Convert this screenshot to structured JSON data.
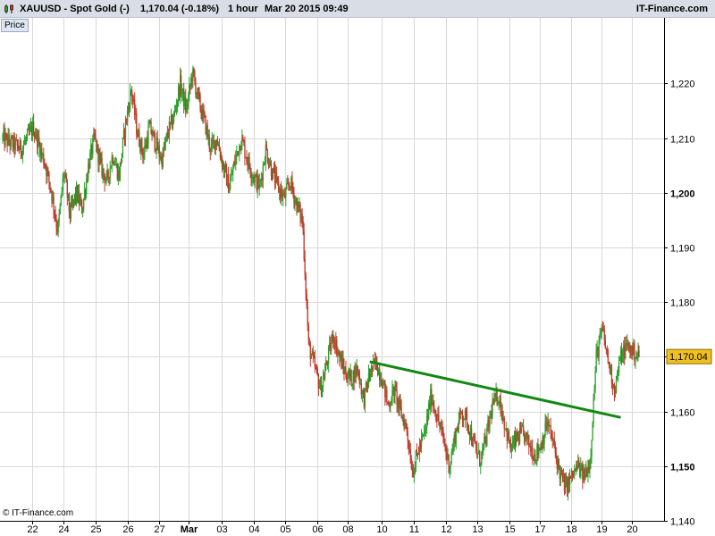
{
  "header": {
    "instrument": "XAUUSD - Spot Gold (-)",
    "price_change": "1,170.04 (-0.18%)",
    "interval": "1 hour",
    "datetime": "Mar 20 2015 09:49",
    "brand": "IT-Finance.com",
    "price_tab": "Price"
  },
  "footer": {
    "copyright": "© IT-Finance.com"
  },
  "colors": {
    "up": "#2ca02c",
    "down": "#c0392b",
    "trendline": "#118811",
    "price_label_bg": "#f0c020",
    "grid": "#d8d8d8"
  },
  "chart_data": {
    "type": "candlestick",
    "title": "XAUUSD - Spot Gold (-)",
    "ylim": [
      1140,
      1232
    ],
    "y_ticks": [
      {
        "value": 1140,
        "label": "1,140",
        "bold": false
      },
      {
        "value": 1150,
        "label": "1,150",
        "bold": true
      },
      {
        "value": 1160,
        "label": "1,160",
        "bold": false
      },
      {
        "value": 1170,
        "label": "1,170",
        "bold": false
      },
      {
        "value": 1180,
        "label": "1,180",
        "bold": false
      },
      {
        "value": 1190,
        "label": "1,190",
        "bold": false
      },
      {
        "value": 1200,
        "label": "1,200",
        "bold": true
      },
      {
        "value": 1210,
        "label": "1,210",
        "bold": false
      },
      {
        "value": 1220,
        "label": "1,220",
        "bold": false
      }
    ],
    "x_ticks": [
      "22",
      "24",
      "25",
      "26",
      "27",
      "Mar",
      "03",
      "04",
      "05",
      "06",
      "08",
      "10",
      "11",
      "12",
      "13",
      "15",
      "17",
      "18",
      "19",
      "20"
    ],
    "x_bold": [
      "Mar"
    ],
    "last_price": 1170.04,
    "last_price_label": "1,170.04",
    "price_path": [
      [
        0,
        1210
      ],
      [
        3,
        1208
      ],
      [
        5,
        1212
      ],
      [
        7,
        1205
      ],
      [
        8,
        1200
      ],
      [
        9,
        1193
      ],
      [
        10,
        1204
      ],
      [
        11,
        1196
      ],
      [
        12,
        1200
      ],
      [
        13,
        1197
      ],
      [
        14,
        1205
      ],
      [
        15,
        1210
      ],
      [
        16,
        1205
      ],
      [
        17,
        1202
      ],
      [
        18,
        1207
      ],
      [
        19,
        1203
      ],
      [
        20,
        1212
      ],
      [
        21,
        1219
      ],
      [
        22,
        1211
      ],
      [
        23,
        1207
      ],
      [
        24,
        1212
      ],
      [
        25,
        1209
      ],
      [
        26,
        1206
      ],
      [
        27,
        1211
      ],
      [
        28,
        1214
      ],
      [
        29,
        1220
      ],
      [
        30,
        1215
      ],
      [
        31,
        1222
      ],
      [
        32,
        1217
      ],
      [
        33,
        1213
      ],
      [
        34,
        1208
      ],
      [
        35,
        1210
      ],
      [
        36,
        1205
      ],
      [
        37,
        1201
      ],
      [
        38,
        1206
      ],
      [
        39,
        1210
      ],
      [
        40,
        1206
      ],
      [
        41,
        1203
      ],
      [
        42,
        1201
      ],
      [
        43,
        1208
      ],
      [
        44,
        1204
      ],
      [
        45,
        1201
      ],
      [
        46,
        1199
      ],
      [
        47,
        1202
      ],
      [
        48,
        1198
      ],
      [
        49,
        1195
      ],
      [
        50,
        1172
      ],
      [
        51,
        1168
      ],
      [
        52,
        1164
      ],
      [
        53,
        1169
      ],
      [
        54,
        1174
      ],
      [
        55,
        1170
      ],
      [
        56,
        1167
      ],
      [
        57,
        1166
      ],
      [
        58,
        1168
      ],
      [
        59,
        1162
      ],
      [
        60,
        1167
      ],
      [
        61,
        1169
      ],
      [
        62,
        1166
      ],
      [
        63,
        1161
      ],
      [
        64,
        1164
      ],
      [
        65,
        1160
      ],
      [
        66,
        1157
      ],
      [
        67,
        1149
      ],
      [
        68,
        1153
      ],
      [
        69,
        1156
      ],
      [
        70,
        1163
      ],
      [
        71,
        1159
      ],
      [
        72,
        1155
      ],
      [
        73,
        1150
      ],
      [
        74,
        1156
      ],
      [
        75,
        1160
      ],
      [
        76,
        1158
      ],
      [
        77,
        1154
      ],
      [
        78,
        1151
      ],
      [
        79,
        1155
      ],
      [
        80,
        1161
      ],
      [
        81,
        1163
      ],
      [
        82,
        1158
      ],
      [
        83,
        1153
      ],
      [
        84,
        1155
      ],
      [
        85,
        1156
      ],
      [
        86,
        1154
      ],
      [
        87,
        1152
      ],
      [
        88,
        1154
      ],
      [
        89,
        1158
      ],
      [
        90,
        1154
      ],
      [
        91,
        1149
      ],
      [
        92,
        1146
      ],
      [
        93,
        1148
      ],
      [
        94,
        1150
      ],
      [
        95,
        1148
      ],
      [
        96,
        1151
      ],
      [
        97,
        1170
      ],
      [
        98,
        1175
      ],
      [
        99,
        1169
      ],
      [
        100,
        1164
      ],
      [
        101,
        1170
      ],
      [
        102,
        1172
      ],
      [
        103,
        1171
      ],
      [
        104,
        1170
      ]
    ],
    "trendline": {
      "x0": 60,
      "y0": 1169.1,
      "x1": 101,
      "y1": 1158.9
    }
  }
}
